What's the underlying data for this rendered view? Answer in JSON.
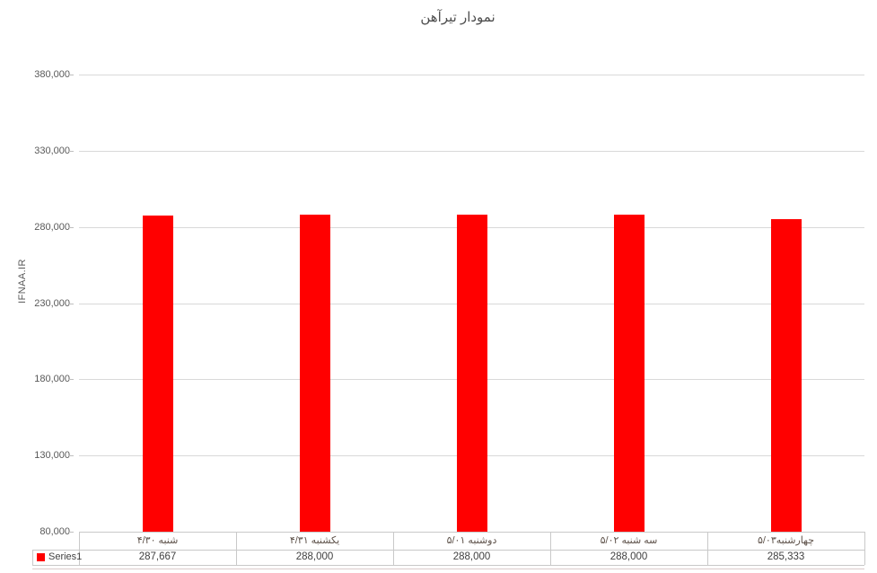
{
  "chart": {
    "title": "نمودار تیرآهن",
    "y_axis": {
      "label": "IFNAA.IR",
      "min": 80000,
      "max": 380000,
      "tick_labels": [
        "380,000",
        "330,000",
        "280,000",
        "230,000",
        "180,000",
        "130,000",
        "80,000"
      ]
    },
    "legend": {
      "series1_label": "Series1",
      "series1_color": "#ff0000"
    },
    "colors": {
      "bar": "#ff0000",
      "gridline": "#d9d9d9",
      "table_border": "#c9c9c9",
      "axis_text": "#595959"
    }
  },
  "chart_data": {
    "type": "bar",
    "title": "نمودار تیرآهن",
    "xlabel": "",
    "ylabel": "IFNAA.IR",
    "categories": [
      "شنبه ۴/۳۰",
      "یکشنبه ۴/۳۱",
      "دوشنبه ۵/۰۱",
      "سه شنبه ۵/۰۲",
      "چهارشنبه۵/۰۳"
    ],
    "series": [
      {
        "name": "Series1",
        "color": "#ff0000",
        "values": [
          287667,
          288000,
          288000,
          288000,
          285333
        ]
      }
    ],
    "value_labels": [
      "287,667",
      "288,000",
      "288,000",
      "288,000",
      "285,333"
    ],
    "ylim": [
      80000,
      380000
    ],
    "ytick_step": 50000,
    "grid": true,
    "legend_position": "bottom-data-table"
  }
}
